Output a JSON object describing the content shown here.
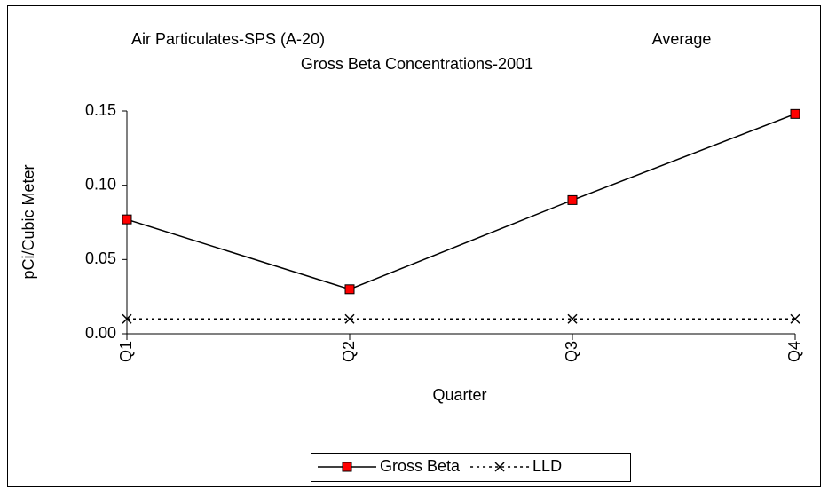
{
  "chart_data": {
    "type": "line",
    "title": "Air Particulates-SPS (A-20)",
    "annotation": "Average",
    "subtitle": "Gross Beta Concentrations-2001",
    "x_label": "Quarter",
    "y_label": "pCi/Cubic Meter",
    "categories": [
      "Q1",
      "Q2",
      "Q3",
      "Q4"
    ],
    "series": [
      {
        "name": "Gross Beta",
        "color": "#ff0000",
        "marker": "square",
        "line_style": "solid",
        "values": [
          0.077,
          0.03,
          0.09,
          0.148
        ]
      },
      {
        "name": "LLD",
        "color": "#000000",
        "marker": "x",
        "line_style": "dotted",
        "values": [
          0.01,
          0.01,
          0.01,
          0.01
        ]
      }
    ],
    "ylim": [
      0,
      0.15
    ],
    "yticks": [
      {
        "value": 0,
        "label": "0.00"
      },
      {
        "value": 0.05,
        "label": "0.05"
      },
      {
        "value": 0.1,
        "label": "0.10"
      },
      {
        "value": 0.15,
        "label": "0.15"
      }
    ],
    "grid": false,
    "legend": "bottom"
  }
}
